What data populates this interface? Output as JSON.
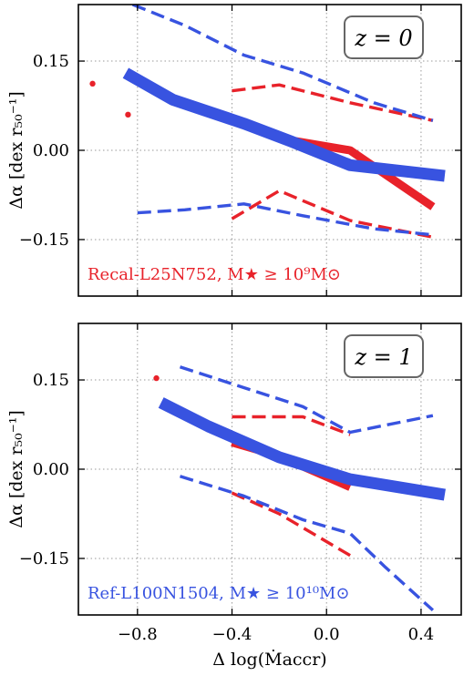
{
  "colors": {
    "red": "#e8222a",
    "blue": "#3853e0",
    "grid": "#9a9a9a",
    "box_edge": "#666666"
  },
  "chart_data": [
    {
      "type": "line",
      "panel": "top",
      "redshift_label": "z = 0",
      "sample_label": "Recal-L25N752, M★ ≥ 10⁹M⊙",
      "sample_color": "red",
      "ylabel": "Δα [dex r₅₀⁻¹]",
      "xlim": [
        -1.05,
        0.57
      ],
      "ylim": [
        -0.245,
        0.245
      ],
      "xticks": [
        -0.8,
        -0.4,
        0.0,
        0.4
      ],
      "xtick_labels": [
        "",
        "",
        "",
        ""
      ],
      "yticks": [
        -0.15,
        0.0,
        0.15
      ],
      "ytick_labels": [
        "−0.15",
        "0.00",
        "0.15"
      ],
      "grid": true,
      "series": [
        {
          "color": "red",
          "style": "solid",
          "x": [
            -0.4,
            -0.2,
            0.1,
            0.45
          ],
          "y": [
            0.05,
            0.02,
            0.0,
            -0.095
          ]
        },
        {
          "color": "red",
          "style": "dashed",
          "x": [
            -0.4,
            -0.2,
            0.1,
            0.45
          ],
          "y": [
            0.1,
            0.11,
            0.08,
            0.05
          ]
        },
        {
          "color": "red",
          "style": "dashed",
          "x": [
            -0.4,
            -0.2,
            0.1,
            0.45
          ],
          "y": [
            -0.115,
            -0.068,
            -0.118,
            -0.146
          ]
        },
        {
          "color": "red",
          "style": "points",
          "x": [
            -0.99,
            -0.84,
            -0.7
          ],
          "y": [
            0.112,
            0.06,
            0.1
          ]
        },
        {
          "color": "blue",
          "style": "solid",
          "x": [
            -0.85,
            -0.65,
            -0.35,
            -0.15,
            0.1,
            0.5
          ],
          "y": [
            0.13,
            0.085,
            0.045,
            0.015,
            -0.025,
            -0.043
          ]
        },
        {
          "color": "blue",
          "style": "dashed",
          "x": [
            -0.82,
            -0.6,
            -0.35,
            -0.1,
            0.2,
            0.45
          ],
          "y": [
            0.245,
            0.21,
            0.16,
            0.13,
            0.08,
            0.05
          ]
        },
        {
          "color": "blue",
          "style": "dashed",
          "x": [
            -0.8,
            -0.6,
            -0.35,
            -0.1,
            0.2,
            0.45
          ],
          "y": [
            -0.105,
            -0.1,
            -0.09,
            -0.11,
            -0.132,
            -0.142
          ]
        }
      ]
    },
    {
      "type": "line",
      "panel": "bottom",
      "redshift_label": "z = 1",
      "sample_label": "Ref-L100N1504, M★ ≥ 10¹⁰M⊙",
      "sample_color": "blue",
      "ylabel": "Δα [dex r₅₀⁻¹]",
      "xlabel": "Δ log(Ṁaccr)",
      "xlim": [
        -1.05,
        0.57
      ],
      "ylim": [
        -0.245,
        0.245
      ],
      "xticks": [
        -0.8,
        -0.4,
        0.0,
        0.4
      ],
      "xtick_labels": [
        "−0.8",
        "−0.4",
        "0.0",
        "0.4"
      ],
      "yticks": [
        -0.15,
        0.0,
        0.15
      ],
      "ytick_labels": [
        "−0.15",
        "0.00",
        "0.15"
      ],
      "grid": true,
      "series": [
        {
          "color": "red",
          "style": "solid",
          "x": [
            -0.4,
            -0.2,
            0.1
          ],
          "y": [
            0.045,
            0.022,
            -0.03
          ]
        },
        {
          "color": "red",
          "style": "dashed",
          "x": [
            -0.4,
            -0.1,
            0.1
          ],
          "y": [
            0.088,
            0.088,
            0.058
          ]
        },
        {
          "color": "red",
          "style": "dashed",
          "x": [
            -0.4,
            -0.2,
            0.1
          ],
          "y": [
            -0.04,
            -0.075,
            -0.145
          ]
        },
        {
          "color": "red",
          "style": "points",
          "x": [
            -0.72
          ],
          "y": [
            0.153
          ]
        },
        {
          "color": "blue",
          "style": "solid",
          "x": [
            -0.7,
            -0.5,
            -0.2,
            0.1,
            0.5
          ],
          "y": [
            0.112,
            0.072,
            0.02,
            -0.017,
            -0.043
          ]
        },
        {
          "color": "blue",
          "style": "dashed",
          "x": [
            -0.62,
            -0.35,
            -0.1,
            0.1,
            0.45
          ],
          "y": [
            0.172,
            0.137,
            0.105,
            0.062,
            0.09
          ]
        },
        {
          "color": "blue",
          "style": "dashed",
          "x": [
            -0.62,
            -0.35,
            -0.1,
            0.1,
            0.25,
            0.45
          ],
          "y": [
            -0.012,
            -0.045,
            -0.085,
            -0.108,
            -0.165,
            -0.237
          ]
        }
      ]
    }
  ]
}
